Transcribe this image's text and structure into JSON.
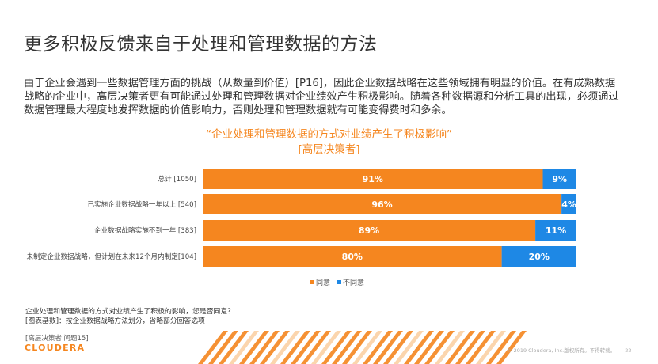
{
  "title": "更多积极反馈来自于处理和管理数据的方法",
  "intro": "由于企业会遇到一些数据管理方面的挑战（从数量到价值）[P16]，因此企业数据战略在这些领域拥有明显的价值。在有成熟数据战略的企业中，高层决策者更有可能通过处理和管理数据对企业绩效产生积极影响。随着各种数据源和分析工具的出现，必须通过数据管理最大程度地发挥数据的价值影响力，否则处理和管理数据就有可能变得费时和多余。",
  "chart_data": {
    "type": "bar",
    "orientation": "horizontal",
    "stacked": true,
    "title": "“企业处理和管理数据的方式对业绩产生了积极影响”",
    "subtitle": "[高层决策者]",
    "categories": [
      "总计 [1050]",
      "已实施企业数据战略一年以上 [540]",
      "企业数据战略实施不到一年 [383]",
      "未制定企业数据战略，但计划在未来12个月内制定[104]"
    ],
    "series": [
      {
        "name": "同意",
        "values": [
          91,
          96,
          89,
          80
        ],
        "labels": [
          "91%",
          "96%",
          "89%",
          "80%"
        ],
        "color": "#f5861f"
      },
      {
        "name": "不同意",
        "values": [
          9,
          4,
          11,
          20
        ],
        "labels": [
          "9%",
          "4%",
          "11%",
          "20%"
        ],
        "color": "#1e88e5"
      }
    ],
    "xlim": [
      0,
      100
    ],
    "legend": "bottom-center",
    "grid": false
  },
  "notes": {
    "question": "企业处理和管理数据的方式对业绩产生了积极的影响，您是否同意？",
    "base": "[图表基数]：按企业数据战略方法划分，省略部分回答选项"
  },
  "source": "[高层决策者 问题15]",
  "logo": "CLOUDERA",
  "footer": {
    "copyright": "© 2019 Cloudera, Inc.版权所有。不得转载。",
    "page": "22"
  }
}
